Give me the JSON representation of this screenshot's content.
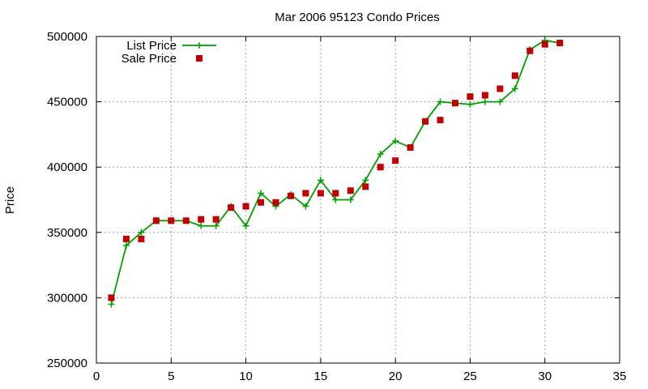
{
  "chart_data": {
    "type": "line",
    "title": "Mar 2006 95123 Condo Prices",
    "xlabel": "",
    "ylabel": "Price",
    "xlim": [
      0,
      35
    ],
    "ylim": [
      250000,
      500000
    ],
    "xticks": [
      0,
      5,
      10,
      15,
      20,
      25,
      30,
      35
    ],
    "yticks": [
      250000,
      300000,
      350000,
      400000,
      450000,
      500000
    ],
    "grid": true,
    "legend_position": "top-left",
    "series": [
      {
        "name": "List Price",
        "style": "line+cross",
        "color": "#00a000",
        "x": [
          1,
          2,
          3,
          4,
          5,
          6,
          7,
          8,
          9,
          10,
          11,
          12,
          13,
          14,
          15,
          16,
          17,
          18,
          19,
          20,
          21,
          22,
          23,
          24,
          25,
          26,
          27,
          28,
          29,
          30,
          31
        ],
        "values": [
          295000,
          340000,
          350000,
          359000,
          359000,
          359000,
          355000,
          355000,
          370000,
          355000,
          380000,
          370000,
          379000,
          370000,
          390000,
          375000,
          375000,
          390000,
          410000,
          420000,
          415000,
          435000,
          450000,
          449000,
          448000,
          450000,
          450000,
          460000,
          490000,
          497000,
          495000
        ]
      },
      {
        "name": "Sale Price",
        "style": "square",
        "color": "#c00000",
        "x": [
          1,
          2,
          3,
          4,
          5,
          6,
          7,
          8,
          9,
          10,
          11,
          12,
          13,
          14,
          15,
          16,
          17,
          18,
          19,
          20,
          21,
          22,
          23,
          24,
          25,
          26,
          27,
          28,
          29,
          30,
          31
        ],
        "values": [
          300000,
          345000,
          345000,
          359000,
          359000,
          359000,
          360000,
          360000,
          369000,
          370000,
          373000,
          373000,
          378000,
          380000,
          380000,
          380000,
          382000,
          385000,
          400000,
          405000,
          415000,
          435000,
          436000,
          449000,
          454000,
          455000,
          460000,
          470000,
          489000,
          494000,
          495000
        ]
      }
    ]
  }
}
